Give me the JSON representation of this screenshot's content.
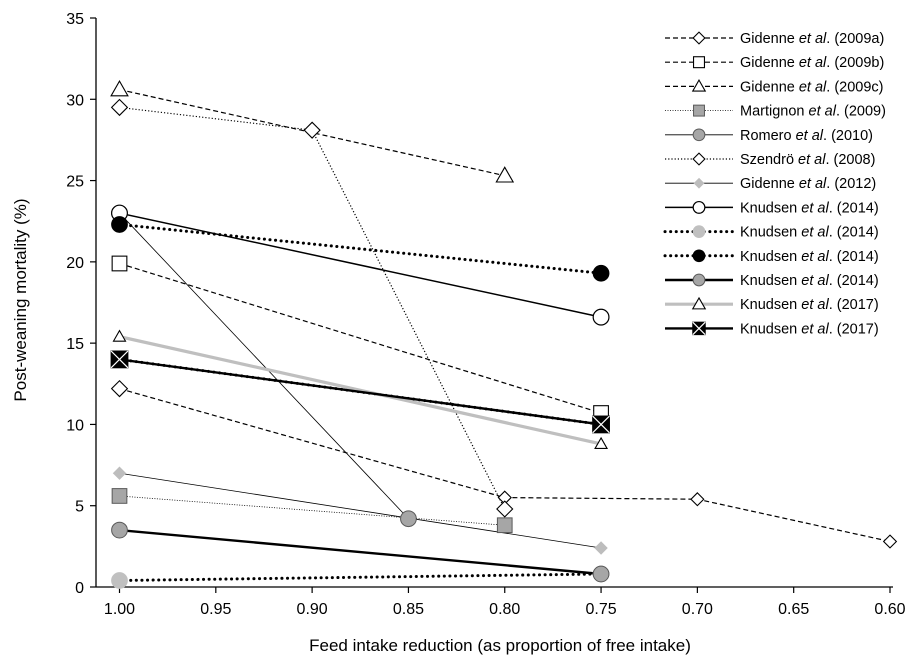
{
  "chart_data": {
    "type": "line",
    "title": "",
    "xlabel": "Feed intake reduction (as proportion of free intake)",
    "ylabel": "Post-weaning mortality (%)",
    "xlim": [
      1.0,
      0.6
    ],
    "x_reversed": true,
    "ylim": [
      0,
      35
    ],
    "x_ticks": [
      "1.00",
      "0.95",
      "0.90",
      "0.85",
      "0.80",
      "0.75",
      "0.70",
      "0.65",
      "0.60"
    ],
    "y_ticks": [
      "0",
      "5",
      "10",
      "15",
      "20",
      "25",
      "30",
      "35"
    ],
    "grid": false,
    "legend_position": "top-right",
    "series": [
      {
        "label_prefix": "Gidenne ",
        "label_etal": "et al",
        "label_suffix": ". (2009a)",
        "line": "dashed",
        "color": "#000000",
        "marker": "diamond-open",
        "points": [
          [
            1.0,
            12.2
          ],
          [
            0.8,
            5.5
          ],
          [
            0.7,
            5.4
          ],
          [
            0.6,
            2.8
          ]
        ]
      },
      {
        "label_prefix": "Gidenne ",
        "label_etal": "et al",
        "label_suffix": ". (2009b)",
        "line": "dashed",
        "color": "#000000",
        "marker": "square-open",
        "points": [
          [
            1.0,
            19.9
          ],
          [
            0.75,
            10.7
          ]
        ]
      },
      {
        "label_prefix": "Gidenne ",
        "label_etal": "et al",
        "label_suffix": ". (2009c)",
        "line": "dashed",
        "color": "#000000",
        "marker": "triangle-open",
        "points": [
          [
            1.0,
            30.6
          ],
          [
            0.8,
            25.3
          ]
        ]
      },
      {
        "label_prefix": "Martignon ",
        "label_etal": "et al",
        "label_suffix": ". (2009)",
        "line": "thin-dotted",
        "color": "#000000",
        "marker": "square-gray",
        "points": [
          [
            1.0,
            5.6
          ],
          [
            0.8,
            3.8
          ]
        ]
      },
      {
        "label_prefix": "Romero ",
        "label_etal": "et al",
        "label_suffix": ". (2010)",
        "line": "thin-solid",
        "color": "#000000",
        "marker": "circle-gray",
        "points": [
          [
            1.0,
            23.0
          ],
          [
            0.85,
            4.2
          ]
        ]
      },
      {
        "label_prefix": "Szendrö ",
        "label_etal": "et al",
        "label_suffix": ". (2008)",
        "line": "dotted",
        "color": "#000000",
        "marker": "diamond-open",
        "points": [
          [
            1.0,
            29.5
          ],
          [
            0.9,
            28.1
          ],
          [
            0.8,
            4.8
          ]
        ]
      },
      {
        "label_prefix": "Gidenne ",
        "label_etal": "et al",
        "label_suffix": ". (2012)",
        "line": "thin-solid",
        "color": "#000000",
        "marker": "diamond-gray",
        "points": [
          [
            1.0,
            7.0
          ],
          [
            0.75,
            2.4
          ]
        ]
      },
      {
        "label_prefix": "Knudsen ",
        "label_etal": "et al",
        "label_suffix": ". (2014)",
        "line": "solid",
        "color": "#000000",
        "marker": "circle-open",
        "points": [
          [
            1.0,
            23.0
          ],
          [
            0.75,
            16.6
          ]
        ]
      },
      {
        "label_prefix": "Knudsen ",
        "label_etal": "et al",
        "label_suffix": ". (2014)",
        "line": "dotted-bold",
        "color": "#000000",
        "marker": "circle-lightgray",
        "points": [
          [
            1.0,
            0.4
          ],
          [
            0.75,
            0.8
          ]
        ]
      },
      {
        "label_prefix": "Knudsen ",
        "label_etal": "et al",
        "label_suffix": ". (2014)",
        "line": "dotted-bold",
        "color": "#000000",
        "marker": "circle-black",
        "points": [
          [
            1.0,
            22.3
          ],
          [
            0.75,
            19.3
          ]
        ]
      },
      {
        "label_prefix": "Knudsen ",
        "label_etal": "et al",
        "label_suffix": ". (2014)",
        "line": "bold-solid",
        "color": "#000000",
        "marker": "circle-gray",
        "points": [
          [
            1.0,
            3.5
          ],
          [
            0.75,
            0.8
          ]
        ]
      },
      {
        "label_prefix": "Knudsen ",
        "label_etal": "et al",
        "label_suffix": ". (2017)",
        "line": "gray-thick",
        "color": "#bfbfbf",
        "marker": "triangle-open",
        "points": [
          [
            1.0,
            15.4
          ],
          [
            0.75,
            8.8
          ]
        ]
      },
      {
        "label_prefix": "Knudsen ",
        "label_etal": "et al",
        "label_suffix": ". (2017)",
        "line": "bold-solid",
        "color": "#000000",
        "marker": "square-x",
        "points": [
          [
            1.0,
            14.0
          ],
          [
            0.75,
            10.0
          ]
        ]
      }
    ],
    "extra_lines": [
      {
        "line": "dotted-bold",
        "color": "#000000",
        "points": [
          [
            1.0,
            14.0
          ],
          [
            0.75,
            10.0
          ]
        ]
      }
    ]
  }
}
